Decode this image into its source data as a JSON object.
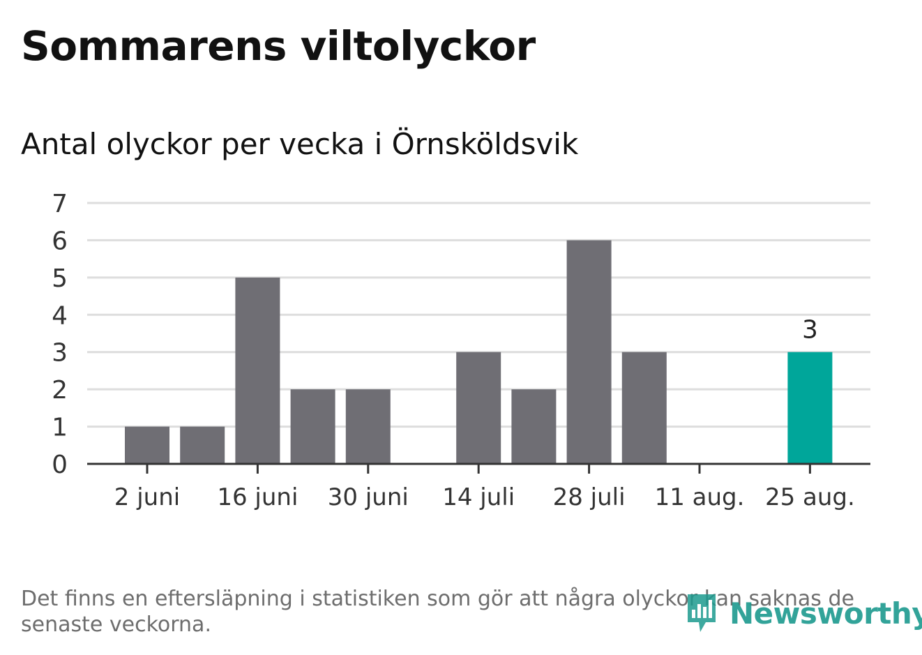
{
  "header": {
    "title": "Sommarens viltolyckor",
    "subtitle": "Antal olyckor per vecka i Örnsköldsvik"
  },
  "footer": {
    "note": "Det finns en eftersläpning i statistiken som gör att några olyckor kan saknas de senaste veckorna.",
    "brand": "Newsworthy"
  },
  "colors": {
    "bar": "#6f6e74",
    "highlight": "#00a69a",
    "grid": "#dddddd",
    "axis": "#333333",
    "brand": "#1c9a8e"
  },
  "chart_data": {
    "type": "bar",
    "title": "Antal olyckor per vecka i Örnsköldsvik",
    "xlabel": "",
    "ylabel": "",
    "ylim": [
      0,
      7
    ],
    "yticks": [
      0,
      1,
      2,
      3,
      4,
      5,
      6,
      7
    ],
    "grid": true,
    "legend": "none",
    "categories": [
      "2 juni",
      "9 juni",
      "16 juni",
      "23 juni",
      "30 juni",
      "7 juli",
      "14 juli",
      "21 juli",
      "28 juli",
      "4 aug.",
      "11 aug.",
      "18 aug.",
      "25 aug."
    ],
    "x_tick_labels": [
      "2 juni",
      "16 juni",
      "30 juni",
      "14 juli",
      "28 juli",
      "11 aug.",
      "25 aug."
    ],
    "x_tick_indices": [
      0,
      2,
      4,
      6,
      8,
      10,
      12
    ],
    "values": [
      1,
      1,
      5,
      2,
      2,
      0,
      3,
      2,
      6,
      3,
      0,
      0,
      3
    ],
    "highlight_index": 12,
    "data_labels": [
      {
        "index": 12,
        "text": "3"
      }
    ]
  }
}
